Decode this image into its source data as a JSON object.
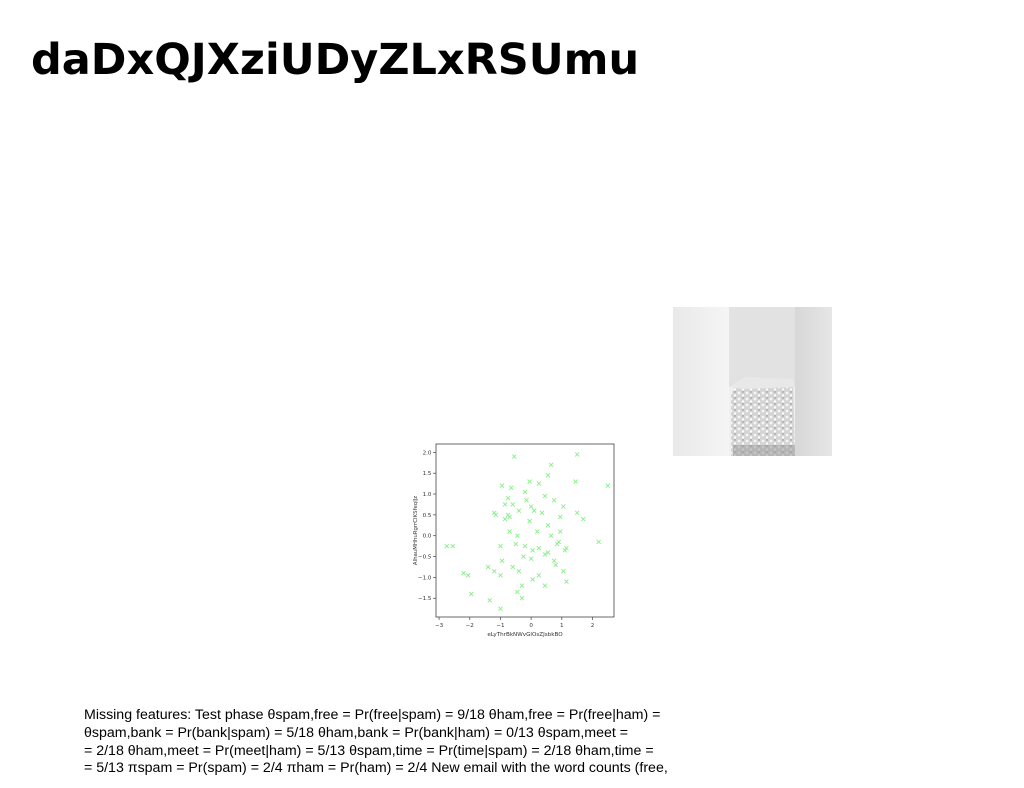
{
  "slide": {
    "title": "daDxQJXziUDyZLxRSUmu",
    "body_lines": [
      "Missing features: Test phase θspam,free = Pr(free|spam) = 9/18 θham,free = Pr(free|ham) =",
      "θspam,bank = Pr(bank|spam) = 5/18 θham,bank = Pr(bank|ham) = 0/13 θspam,meet =",
      "= 2/18 θham,meet = Pr(meet|ham) = 5/13 θspam,time = Pr(time|spam) = 2/18 θham,time =",
      "= 5/13 πspam = Pr(spam) = 2/4 πham = Pr(ham) = 2/4 New email with the word counts (free,"
    ]
  },
  "colors": {
    "marker": "#88ee88",
    "axis": "#444444",
    "background": "#ffffff"
  },
  "chart_data": {
    "type": "scatter",
    "marker": "x",
    "title": "",
    "xlabel": "eLyThrBkNWvGlOsZJsbkBO",
    "ylabel": "AlhauMHhuRgrrCIKSfeqlJz",
    "xlim": [
      -3.1,
      2.7
    ],
    "ylim": [
      -1.95,
      2.2
    ],
    "xticks": [
      -3,
      -2,
      -1,
      0,
      1,
      2
    ],
    "xtick_labels": [
      "−3",
      "−2",
      "−1",
      "0",
      "1",
      "2"
    ],
    "yticks": [
      -1.5,
      -1.0,
      -0.5,
      0.0,
      0.5,
      1.0,
      1.5,
      2.0
    ],
    "ytick_labels": [
      "−1.5",
      "−1.0",
      "−0.5",
      "0.0",
      "0.5",
      "1.0",
      "1.5",
      "2.0"
    ],
    "grid": false,
    "x": [
      -0.55,
      1.5,
      0.65,
      -0.95,
      -0.05,
      0.55,
      0.25,
      -0.65,
      1.45,
      2.5,
      -0.2,
      0.45,
      0.75,
      -0.75,
      -0.85,
      -1.2,
      -1.15,
      -0.15,
      0.0,
      -0.6,
      0.1,
      0.35,
      1.05,
      1.5,
      1.7,
      -0.4,
      0.95,
      -0.75,
      -0.7,
      -0.85,
      -0.05,
      0.55,
      0.2,
      -0.7,
      -0.45,
      0.65,
      0.95,
      0.9,
      -2.75,
      -2.55,
      -0.5,
      -0.2,
      0.05,
      0.25,
      0.85,
      0.45,
      1.15,
      2.2,
      -1.0,
      -0.25,
      0.55,
      1.1,
      0.75,
      -1.4,
      -0.95,
      -0.6,
      0.0,
      0.8,
      -0.4,
      -1.2,
      -1.0,
      1.05,
      0.25,
      0.05,
      -0.3,
      -2.2,
      -2.05,
      -1.95,
      -0.45,
      0.45,
      1.15,
      -1.35,
      -0.3,
      -1.0
    ],
    "y": [
      1.9,
      1.95,
      1.7,
      1.2,
      1.3,
      1.45,
      1.25,
      1.15,
      1.3,
      1.2,
      1.05,
      0.95,
      0.85,
      0.9,
      0.75,
      0.55,
      0.5,
      0.85,
      0.7,
      0.75,
      0.6,
      0.55,
      0.7,
      0.55,
      0.4,
      0.6,
      0.45,
      0.5,
      0.45,
      0.4,
      0.35,
      0.25,
      0.1,
      0.1,
      0.0,
      0.0,
      0.1,
      -0.15,
      -0.25,
      -0.25,
      -0.2,
      -0.25,
      -0.35,
      -0.3,
      -0.2,
      -0.45,
      -0.3,
      -0.15,
      -0.25,
      -0.5,
      -0.4,
      -0.35,
      -0.6,
      -0.75,
      -0.6,
      -0.75,
      -0.55,
      -0.7,
      -0.85,
      -0.85,
      -0.95,
      -0.85,
      -0.95,
      -1.05,
      -1.2,
      -0.9,
      -0.95,
      -1.4,
      -1.35,
      -1.2,
      -1.1,
      -1.55,
      -1.5,
      -1.75
    ]
  }
}
